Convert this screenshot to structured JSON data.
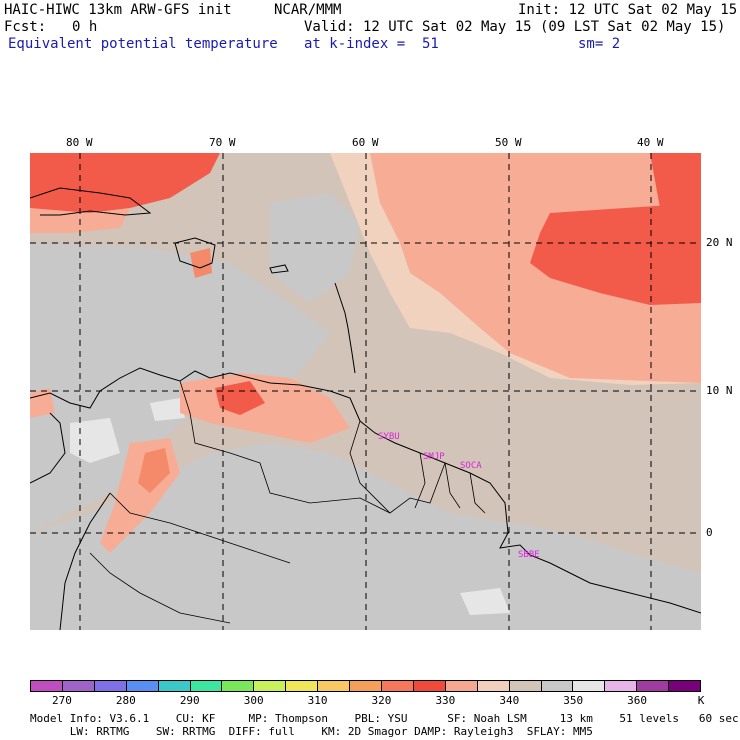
{
  "header": {
    "model": "HAIC-HIWC 13km ARW-GFS init",
    "org": "NCAR/MMM",
    "init": "Init: 12 UTC Sat 02 May 15",
    "fcst_label": "Fcst:",
    "fcst_value": "0 h",
    "valid": "Valid: 12 UTC Sat 02 May 15 (09 LST Sat 02 May 15)",
    "field": "Equivalent potential temperature",
    "level": "at k-index =  51",
    "smoothing": "sm= 2"
  },
  "map": {
    "lon_labels": [
      "80 W",
      "70 W",
      "60 W",
      "50 W",
      "40 W"
    ],
    "lat_labels": [
      "20 N",
      "10 N",
      "0"
    ],
    "stations": [
      "SYBU",
      "SMJP",
      "SOCA",
      "SBBE"
    ],
    "colors": {
      "grey": "#c8c8c8",
      "light_grey": "#e6e6e6",
      "tan": "#d2c4b8",
      "peach": "#f0d2bf",
      "salmon": "#f7ad95",
      "orange": "#f58a6a",
      "red": "#f25a4a"
    }
  },
  "colorbar": {
    "labels": [
      "270",
      "280",
      "290",
      "300",
      "310",
      "320",
      "330",
      "340",
      "350",
      "360",
      "K"
    ],
    "colors": [
      "#c04ec0",
      "#a064c8",
      "#7f70e6",
      "#5a8ef0",
      "#3cc8c8",
      "#3ce6a0",
      "#7ae65a",
      "#c8f05a",
      "#f0e65a",
      "#f8c864",
      "#f5a05a",
      "#f5785a",
      "#f04a3a",
      "#f5a890",
      "#f0d0bc",
      "#d2c4b8",
      "#c8c8c8",
      "#e6e6e6",
      "#e6b4e6",
      "#a03ca0",
      "#780078"
    ]
  },
  "footer": {
    "line1": "Model Info: V3.6.1    CU: KF     MP: Thompson    PBL: YSU      SF: Noah LSM     13 km    51 levels   60 sec",
    "line2": "      LW: RRTMG    SW: RRTMG  DIFF: full    KM: 2D Smagor DAMP: Rayleigh3  SFLAY: MM5"
  }
}
